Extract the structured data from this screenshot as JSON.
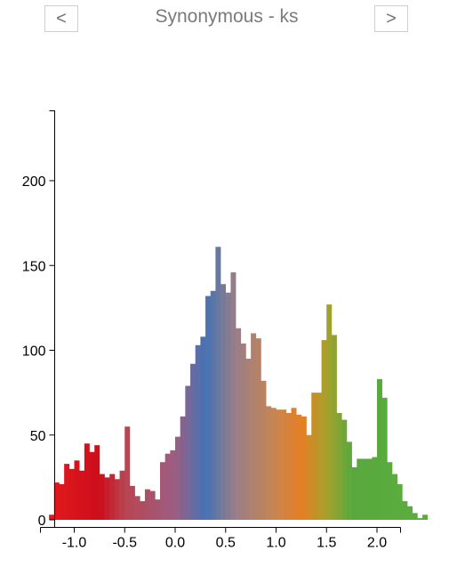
{
  "nav": {
    "prev_label": "<",
    "next_label": ">",
    "title": "Synonymous - ks"
  },
  "chart_data": {
    "type": "bar",
    "title": "Synonymous - ks",
    "xlabel": "",
    "ylabel": "",
    "bin_width": 0.05,
    "x_start": -1.25,
    "xlim": [
      -1.25,
      2.35
    ],
    "ylim": [
      0,
      240
    ],
    "x_ticks": [
      "-1.0",
      "-0.5",
      "0.0",
      "0.5",
      "1.0",
      "1.5",
      "2.0"
    ],
    "x_tick_values": [
      -1.0,
      -0.5,
      0.0,
      0.5,
      1.0,
      1.5,
      2.0
    ],
    "y_ticks": [
      "0",
      "50",
      "100",
      "150",
      "200"
    ],
    "y_tick_values": [
      0,
      50,
      100,
      150,
      200
    ],
    "values": [
      3,
      22,
      21,
      33,
      30,
      35,
      29,
      45,
      40,
      44,
      27,
      25,
      27,
      24,
      29,
      55,
      20,
      14,
      11,
      18,
      17,
      12,
      34,
      39,
      41,
      49,
      61,
      79,
      92,
      103,
      108,
      132,
      135,
      161,
      139,
      134,
      146,
      113,
      104,
      95,
      110,
      107,
      82,
      67,
      66,
      65,
      65,
      63,
      66,
      62,
      61,
      50,
      75,
      75,
      106,
      127,
      109,
      63,
      59,
      46,
      31,
      36,
      36,
      36,
      37,
      83,
      72,
      34,
      27,
      21,
      11,
      8,
      4,
      1,
      3
    ],
    "color_stops": [
      {
        "x": -1.25,
        "color": "#e31a1c"
      },
      {
        "x": -0.75,
        "color": "#cc0e1c"
      },
      {
        "x": -0.5,
        "color": "#b84450"
      },
      {
        "x": 0.0,
        "color": "#9c5e82"
      },
      {
        "x": 0.3,
        "color": "#4573b4"
      },
      {
        "x": 0.6,
        "color": "#9a7e86"
      },
      {
        "x": 1.0,
        "color": "#c9854f"
      },
      {
        "x": 1.25,
        "color": "#e67e22"
      },
      {
        "x": 1.5,
        "color": "#a7a12c"
      },
      {
        "x": 1.75,
        "color": "#58a83e"
      },
      {
        "x": 2.35,
        "color": "#5aad3c"
      }
    ]
  }
}
